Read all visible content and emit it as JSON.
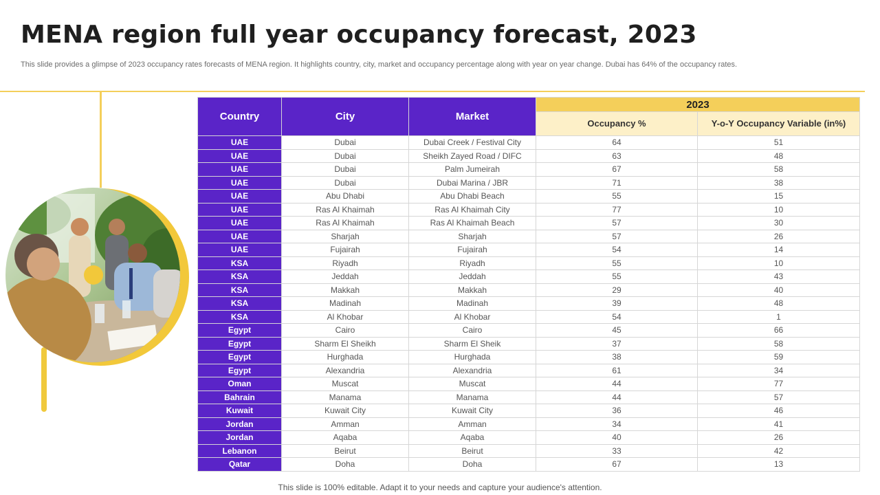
{
  "title": "MENA region full year occupancy forecast, 2023",
  "subtitle": "This slide provides a glimpse of  2023 occupancy rates forecasts of MENA  region. It highlights country, city,  market and occupancy percentage along with year on year change. Dubai has 64% of the occupancy rates.",
  "table": {
    "headers": {
      "country": "Country",
      "city": "City",
      "market": "Market",
      "year": "2023",
      "occupancy": "Occupancy %",
      "yoy": "Y-o-Y Occupancy Variable (in%)"
    },
    "rows": [
      {
        "country": "UAE",
        "city": "Dubai",
        "market": "Dubai Creek / Festival City",
        "occupancy": "64",
        "yoy": "51"
      },
      {
        "country": "UAE",
        "city": "Dubai",
        "market": "Sheikh Zayed Road / DIFC",
        "occupancy": "63",
        "yoy": "48"
      },
      {
        "country": "UAE",
        "city": "Dubai",
        "market": "Palm Jumeirah",
        "occupancy": "67",
        "yoy": "58"
      },
      {
        "country": "UAE",
        "city": "Dubai",
        "market": "Dubai Marina / JBR",
        "occupancy": "71",
        "yoy": "38"
      },
      {
        "country": "UAE",
        "city": "Abu Dhabi",
        "market": "Abu Dhabi Beach",
        "occupancy": "55",
        "yoy": "15"
      },
      {
        "country": "UAE",
        "city": "Ras Al Khaimah",
        "market": "Ras Al Khaimah City",
        "occupancy": "77",
        "yoy": "10"
      },
      {
        "country": "UAE",
        "city": "Ras Al Khaimah",
        "market": "Ras Al Khaimah Beach",
        "occupancy": "57",
        "yoy": "30"
      },
      {
        "country": "UAE",
        "city": "Sharjah",
        "market": "Sharjah",
        "occupancy": "57",
        "yoy": "26"
      },
      {
        "country": "UAE",
        "city": "Fujairah",
        "market": "Fujairah",
        "occupancy": "54",
        "yoy": "14"
      },
      {
        "country": "KSA",
        "city": "Riyadh",
        "market": "Riyadh",
        "occupancy": "55",
        "yoy": "10"
      },
      {
        "country": "KSA",
        "city": "Jeddah",
        "market": "Jeddah",
        "occupancy": "55",
        "yoy": "43"
      },
      {
        "country": "KSA",
        "city": "Makkah",
        "market": "Makkah",
        "occupancy": "29",
        "yoy": "40"
      },
      {
        "country": "KSA",
        "city": "Madinah",
        "market": "Madinah",
        "occupancy": "39",
        "yoy": "48"
      },
      {
        "country": "KSA",
        "city": "Al Khobar",
        "market": "Al Khobar",
        "occupancy": "54",
        "yoy": "1"
      },
      {
        "country": "Egypt",
        "city": "Cairo",
        "market": "Cairo",
        "occupancy": "45",
        "yoy": "66"
      },
      {
        "country": "Egypt",
        "city": "Sharm El Sheikh",
        "market": "Sharm El Sheik",
        "occupancy": "37",
        "yoy": "58"
      },
      {
        "country": "Egypt",
        "city": "Hurghada",
        "market": "Hurghada",
        "occupancy": "38",
        "yoy": "59"
      },
      {
        "country": "Egypt",
        "city": "Alexandria",
        "market": "Alexandria",
        "occupancy": "61",
        "yoy": "34"
      },
      {
        "country": "Oman",
        "city": "Muscat",
        "market": "Muscat",
        "occupancy": "44",
        "yoy": "77"
      },
      {
        "country": "Bahrain",
        "city": "Manama",
        "market": "Manama",
        "occupancy": "44",
        "yoy": "57"
      },
      {
        "country": "Kuwait",
        "city": "Kuwait City",
        "market": "Kuwait City",
        "occupancy": "36",
        "yoy": "46"
      },
      {
        "country": "Jordan",
        "city": "Amman",
        "market": "Amman",
        "occupancy": "34",
        "yoy": "41"
      },
      {
        "country": "Jordan",
        "city": "Aqaba",
        "market": "Aqaba",
        "occupancy": "40",
        "yoy": "26"
      },
      {
        "country": "Lebanon",
        "city": "Beirut",
        "market": "Beirut",
        "occupancy": "33",
        "yoy": "42"
      },
      {
        "country": "Qatar",
        "city": "Doha",
        "market": "Doha",
        "occupancy": "67",
        "yoy": "13"
      }
    ]
  },
  "footer": "This slide is 100% editable. Adapt it to your needs and capture your audience's attention.",
  "colors": {
    "accent_purple": "#5a24c8",
    "accent_yellow": "#f4cf5a",
    "sub_header_bg": "#fdf0c8"
  },
  "decorations": {
    "photo": "business-meeting-photo"
  }
}
